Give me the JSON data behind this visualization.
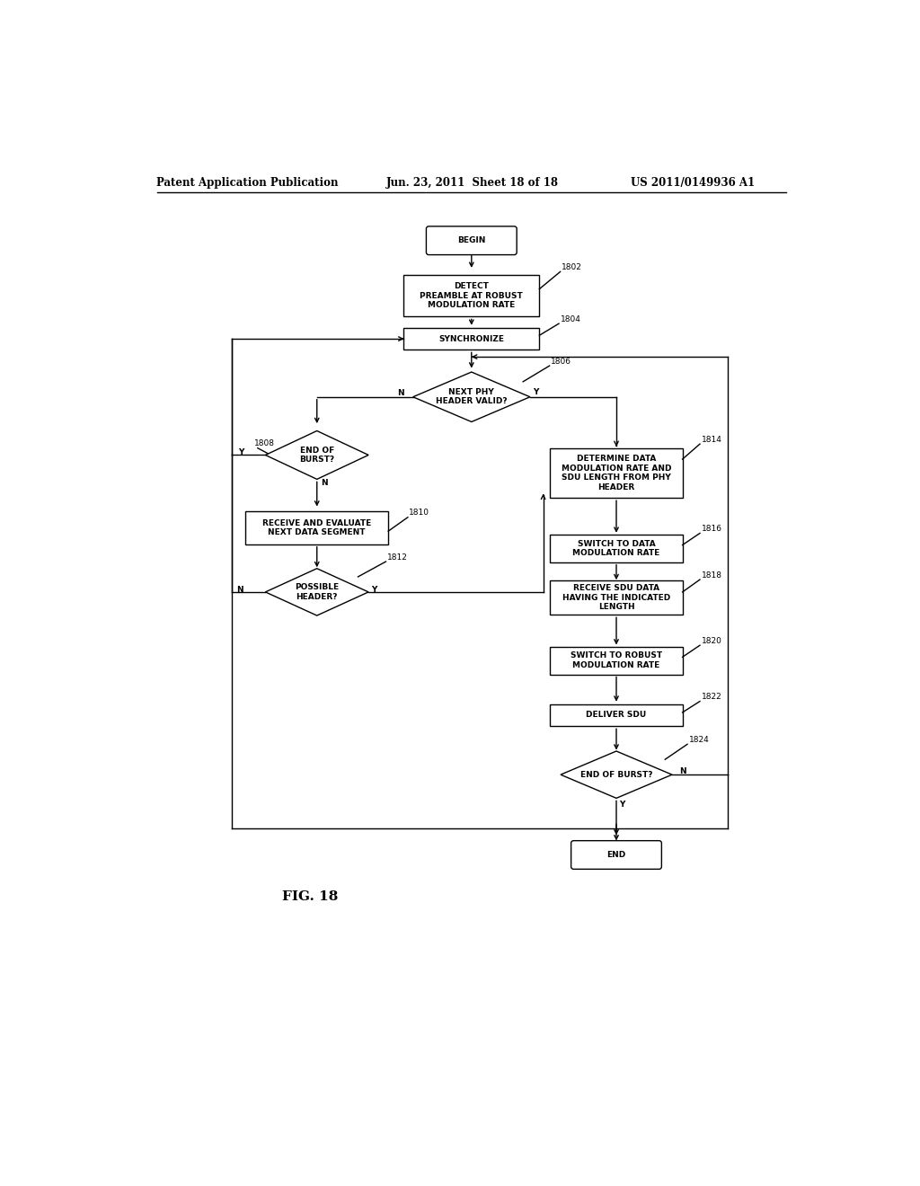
{
  "title_left": "Patent Application Publication",
  "title_center": "Jun. 23, 2011  Sheet 18 of 18",
  "title_right": "US 2011/0149936 A1",
  "fig_label": "FIG. 18",
  "background": "#ffffff",
  "font_size_node": 6.5,
  "font_size_ref": 6.5,
  "font_size_header": 8.5,
  "line_width": 1.0
}
